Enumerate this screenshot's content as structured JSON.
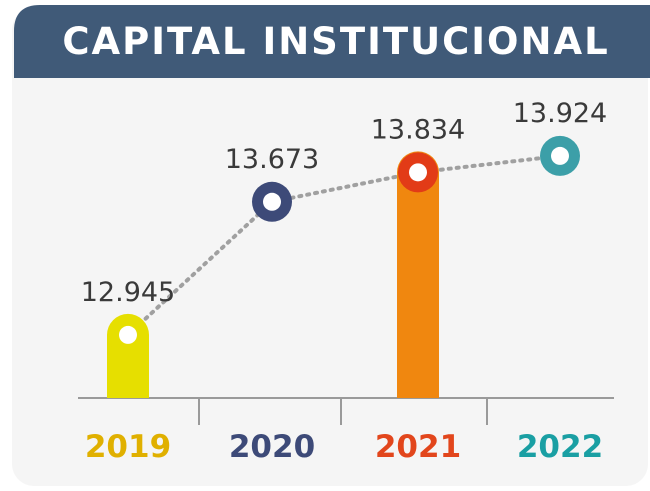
{
  "chart_data": {
    "type": "bar",
    "title": "CAPITAL INSTITUCIONAL",
    "categories": [
      "2019",
      "2020",
      "2021",
      "2022"
    ],
    "values": [
      12945,
      13673,
      13834,
      13924
    ],
    "value_labels": [
      "12.945",
      "13.673",
      "13.834",
      "13.924"
    ],
    "colors": [
      "#e6df00",
      "#3d4a78",
      "#f0870f",
      "#3c9fa8"
    ],
    "marker_colors": [
      "#e6df00",
      "#3d4a78",
      "#e23b17",
      "#3c9fa8"
    ],
    "label_colors": [
      "#e0b000",
      "#3d4a78",
      "#e2461c",
      "#1a9fa3"
    ],
    "bars": [
      true,
      false,
      true,
      false
    ],
    "ylim": [
      12600,
      14000
    ]
  }
}
